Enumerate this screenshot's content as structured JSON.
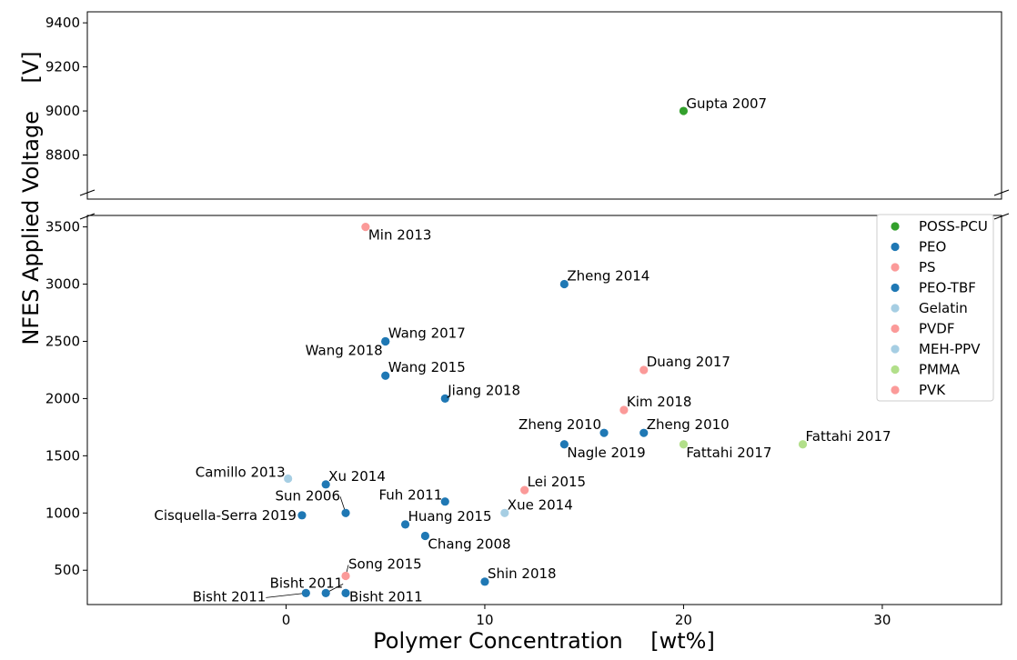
{
  "chart_data": {
    "type": "scatter",
    "xlabel": "Polymer Concentration    [wt%]",
    "ylabel": "NFES Applied Voltage    [V]",
    "broken_y_axis": true,
    "xlim": [
      -10,
      36
    ],
    "x_ticks": [
      "0",
      "10",
      "20",
      "30"
    ],
    "upper_panel": {
      "ylim": [
        8600,
        9450
      ],
      "y_ticks": [
        "8800",
        "9000",
        "9200",
        "9400"
      ]
    },
    "lower_panel": {
      "ylim": [
        200,
        3600
      ],
      "y_ticks": [
        "500",
        "1000",
        "1500",
        "2000",
        "2500",
        "3000",
        "3500"
      ]
    },
    "legend_position": "right",
    "legend": [
      {
        "label": "POSS-PCU",
        "color": "#33a02c"
      },
      {
        "label": "PEO",
        "color": "#1f78b4"
      },
      {
        "label": "PS",
        "color": "#fb9a99"
      },
      {
        "label": "PEO-TBF",
        "color": "#1f78b4"
      },
      {
        "label": "Gelatin",
        "color": "#a6cee3"
      },
      {
        "label": "PVDF",
        "color": "#fb9a99"
      },
      {
        "label": "MEH-PPV",
        "color": "#a6cee3"
      },
      {
        "label": "PMMA",
        "color": "#b2df8a"
      },
      {
        "label": "PVK",
        "color": "#fb9a99"
      }
    ],
    "points": [
      {
        "label": "Gupta 2007",
        "x": 20,
        "y": 9000,
        "color": "#33a02c"
      },
      {
        "label": "Min 2013",
        "x": 4,
        "y": 3500,
        "color": "#fb9a99"
      },
      {
        "label": "Zheng 2014",
        "x": 14,
        "y": 3000,
        "color": "#1f78b4"
      },
      {
        "label": "Wang 2017",
        "x": 5,
        "y": 2500,
        "color": "#1f78b4"
      },
      {
        "label": "Wang 2018",
        "x": 5,
        "y": 2500,
        "color": "#1f78b4"
      },
      {
        "label": "Wang 2015",
        "x": 5,
        "y": 2200,
        "color": "#1f78b4"
      },
      {
        "label": "Duang 2017",
        "x": 18,
        "y": 2250,
        "color": "#fb9a99"
      },
      {
        "label": "Jiang 2018",
        "x": 8,
        "y": 2000,
        "color": "#1f78b4"
      },
      {
        "label": "Kim 2018",
        "x": 17,
        "y": 1900,
        "color": "#fb9a99"
      },
      {
        "label": "Zheng 2010",
        "x": 16,
        "y": 1700,
        "color": "#1f78b4"
      },
      {
        "label": "Zheng 2010",
        "x": 18,
        "y": 1700,
        "color": "#1f78b4"
      },
      {
        "label": "Nagle 2019",
        "x": 14,
        "y": 1600,
        "color": "#1f78b4"
      },
      {
        "label": "Fattahi 2017",
        "x": 20,
        "y": 1600,
        "color": "#b2df8a"
      },
      {
        "label": "Fattahi 2017",
        "x": 26,
        "y": 1600,
        "color": "#b2df8a"
      },
      {
        "label": "Camillo 2013",
        "x": 0.1,
        "y": 1300,
        "color": "#a6cee3"
      },
      {
        "label": "Xu 2014",
        "x": 2,
        "y": 1250,
        "color": "#1f78b4"
      },
      {
        "label": "Lei 2015",
        "x": 12,
        "y": 1200,
        "color": "#fb9a99"
      },
      {
        "label": "Fuh 2011",
        "x": 8,
        "y": 1100,
        "color": "#1f78b4"
      },
      {
        "label": "Sun 2006",
        "x": 3,
        "y": 1000,
        "color": "#1f78b4"
      },
      {
        "label": "Xue 2014",
        "x": 11,
        "y": 1000,
        "color": "#a6cee3"
      },
      {
        "label": "Cisquella-Serra 2019",
        "x": 0.8,
        "y": 980,
        "color": "#1f78b4"
      },
      {
        "label": "Huang 2015",
        "x": 6,
        "y": 900,
        "color": "#1f78b4"
      },
      {
        "label": "Chang 2008",
        "x": 7,
        "y": 800,
        "color": "#1f78b4"
      },
      {
        "label": "Song 2015",
        "x": 3,
        "y": 450,
        "color": "#fb9a99"
      },
      {
        "label": "Shin 2018",
        "x": 10,
        "y": 400,
        "color": "#1f78b4"
      },
      {
        "label": "Bisht 2011",
        "x": 2,
        "y": 300,
        "color": "#1f78b4"
      },
      {
        "label": "Bisht 2011",
        "x": 1,
        "y": 300,
        "color": "#1f78b4"
      },
      {
        "label": "Bisht 2011",
        "x": 3,
        "y": 300,
        "color": "#1f78b4"
      }
    ]
  }
}
